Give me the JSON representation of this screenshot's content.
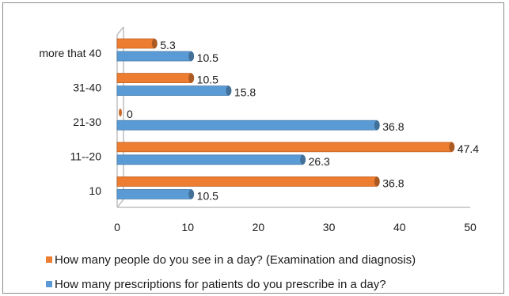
{
  "chart_data": {
    "type": "bar",
    "orientation": "horizontal",
    "style": "3d",
    "categories": [
      "10",
      "11--20",
      "21-30",
      "31-40",
      "more that 40"
    ],
    "series": [
      {
        "name": "How many people do you see in a day? (Examination and diagnosis)",
        "color": "#ed7d31",
        "values": [
          36.8,
          47.4,
          0,
          10.5,
          5.3
        ],
        "labels": [
          "36.8",
          "47.4",
          "0",
          "10.5",
          "5.3"
        ]
      },
      {
        "name": "How many prescriptions for patients do you prescribe in a day?",
        "color": "#5b9bd5",
        "values": [
          10.5,
          26.3,
          36.8,
          15.8,
          10.5
        ],
        "labels": [
          "10.5",
          "26.3",
          "36.8",
          "15.8",
          "10.5"
        ]
      }
    ],
    "xlim": [
      0,
      50
    ],
    "xticks": [
      "0",
      "10",
      "20",
      "30",
      "40",
      "50"
    ],
    "grid": false,
    "legend_position": "bottom",
    "title": "",
    "xlabel": "",
    "ylabel": ""
  }
}
